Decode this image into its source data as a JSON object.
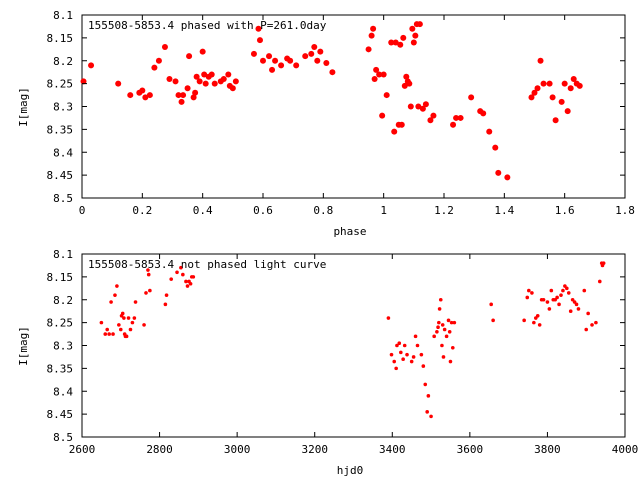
{
  "chart_data": [
    {
      "type": "scatter",
      "title": "155508-5853.4 phased with P=261.0day",
      "xlabel": "phase",
      "ylabel": "I[mag]",
      "xlim": [
        0,
        1.8
      ],
      "ylim": [
        8.5,
        8.1
      ],
      "y_inverted": true,
      "grid": false,
      "marker_color": "#ff0000",
      "marker": "filled-circle-large",
      "xticks": [
        0,
        0.2,
        0.4,
        0.6,
        0.8,
        1,
        1.2,
        1.4,
        1.6,
        1.8
      ],
      "xtick_labels": [
        "0",
        "0.2",
        "0.4",
        "0.6",
        "0.8",
        "1",
        "1.2",
        "1.4",
        "1.6",
        "1.8"
      ],
      "yticks": [
        8.1,
        8.15,
        8.2,
        8.25,
        8.3,
        8.35,
        8.4,
        8.45,
        8.5
      ],
      "ytick_labels": [
        "8.1",
        "8.15",
        "8.2",
        "8.25",
        "8.3",
        "8.35",
        "8.4",
        "8.45",
        "8.5"
      ],
      "x": [
        0.005,
        0.03,
        0.12,
        0.16,
        0.19,
        0.2,
        0.21,
        0.225,
        0.24,
        0.255,
        0.275,
        0.29,
        0.31,
        0.32,
        0.33,
        0.335,
        0.35,
        0.355,
        0.37,
        0.375,
        0.38,
        0.39,
        0.4,
        0.405,
        0.41,
        0.42,
        0.43,
        0.44,
        0.46,
        0.47,
        0.485,
        0.49,
        0.5,
        0.51,
        0.57,
        0.585,
        0.59,
        0.6,
        0.62,
        0.63,
        0.64,
        0.66,
        0.68,
        0.69,
        0.71,
        0.74,
        0.76,
        0.77,
        0.78,
        0.79,
        0.81,
        0.83,
        0.95,
        0.96,
        0.965,
        0.97,
        0.975,
        0.985,
        0.995,
        1.0,
        1.01,
        1.025,
        1.035,
        1.04,
        1.05,
        1.055,
        1.06,
        1.065,
        1.07,
        1.075,
        1.08,
        1.085,
        1.09,
        1.095,
        1.1,
        1.105,
        1.11,
        1.115,
        1.12,
        1.13,
        1.14,
        1.155,
        1.165,
        1.23,
        1.24,
        1.255,
        1.29,
        1.32,
        1.33,
        1.35,
        1.37,
        1.38,
        1.41,
        1.49,
        1.5,
        1.51,
        1.52,
        1.53,
        1.55,
        1.56,
        1.57,
        1.59,
        1.6,
        1.61,
        1.62,
        1.63,
        1.64,
        1.65
      ],
      "y": [
        8.245,
        8.21,
        8.25,
        8.275,
        8.27,
        8.265,
        8.28,
        8.275,
        8.215,
        8.2,
        8.17,
        8.24,
        8.245,
        8.275,
        8.29,
        8.275,
        8.26,
        8.19,
        8.28,
        8.27,
        8.235,
        8.245,
        8.18,
        8.23,
        8.25,
        8.235,
        8.23,
        8.25,
        8.245,
        8.24,
        8.23,
        8.255,
        8.26,
        8.245,
        8.185,
        8.13,
        8.155,
        8.2,
        8.19,
        8.22,
        8.2,
        8.21,
        8.195,
        8.2,
        8.21,
        8.19,
        8.185,
        8.17,
        8.2,
        8.18,
        8.205,
        8.225,
        8.175,
        8.145,
        8.13,
        8.24,
        8.22,
        8.23,
        8.32,
        8.23,
        8.275,
        8.16,
        8.355,
        8.16,
        8.34,
        8.165,
        8.34,
        8.15,
        8.255,
        8.235,
        8.245,
        8.25,
        8.3,
        8.13,
        8.16,
        8.145,
        8.12,
        8.3,
        8.12,
        8.305,
        8.295,
        8.33,
        8.32,
        8.34,
        8.325,
        8.325,
        8.28,
        8.31,
        8.315,
        8.355,
        8.39,
        8.445,
        8.455,
        8.28,
        8.27,
        8.26,
        8.2,
        8.25,
        8.25,
        8.28,
        8.33,
        8.29,
        8.25,
        8.31,
        8.26,
        8.24,
        8.25,
        8.255
      ]
    },
    {
      "type": "scatter",
      "title": "155508-5853.4 not phased light curve",
      "xlabel": "hjd0",
      "ylabel": "I[mag]",
      "xlim": [
        2600,
        4000
      ],
      "ylim": [
        8.5,
        8.1
      ],
      "y_inverted": true,
      "grid": false,
      "marker_color": "#ff0000",
      "marker": "filled-circle-small",
      "xticks": [
        2600,
        2800,
        3000,
        3200,
        3400,
        3600,
        3800,
        4000
      ],
      "xtick_labels": [
        "2600",
        "2800",
        "3000",
        "3200",
        "3400",
        "3600",
        "3800",
        "4000"
      ],
      "yticks": [
        8.1,
        8.15,
        8.2,
        8.25,
        8.3,
        8.35,
        8.4,
        8.45,
        8.5
      ],
      "ytick_labels": [
        "8.1",
        "8.15",
        "8.2",
        "8.25",
        "8.3",
        "8.35",
        "8.4",
        "8.45",
        "8.5"
      ],
      "x": [
        2650,
        2660,
        2665,
        2670,
        2675,
        2680,
        2685,
        2690,
        2695,
        2700,
        2702,
        2705,
        2708,
        2710,
        2712,
        2715,
        2720,
        2725,
        2730,
        2735,
        2738,
        2760,
        2765,
        2770,
        2772,
        2775,
        2815,
        2818,
        2830,
        2845,
        2855,
        2860,
        2868,
        2872,
        2876,
        2880,
        2883,
        2887,
        3390,
        3398,
        3405,
        3410,
        3412,
        3418,
        3422,
        3428,
        3432,
        3438,
        3450,
        3455,
        3460,
        3465,
        3475,
        3480,
        3485,
        3490,
        3493,
        3500,
        3508,
        3515,
        3518,
        3520,
        3522,
        3525,
        3528,
        3530,
        3532,
        3535,
        3540,
        3545,
        3548,
        3550,
        3553,
        3556,
        3560,
        3655,
        3660,
        3740,
        3748,
        3752,
        3760,
        3765,
        3770,
        3775,
        3780,
        3785,
        3790,
        3800,
        3805,
        3810,
        3815,
        3820,
        3825,
        3830,
        3835,
        3840,
        3845,
        3850,
        3855,
        3860,
        3865,
        3870,
        3875,
        3880,
        3895,
        3900,
        3905,
        3915,
        3925,
        3935,
        3940,
        3942,
        3945
      ],
      "y": [
        8.25,
        8.275,
        8.265,
        8.275,
        8.205,
        8.275,
        8.19,
        8.17,
        8.255,
        8.265,
        8.235,
        8.23,
        8.24,
        8.275,
        8.28,
        8.28,
        8.24,
        8.265,
        8.25,
        8.24,
        8.205,
        8.255,
        8.185,
        8.135,
        8.145,
        8.18,
        8.21,
        8.19,
        8.155,
        8.14,
        8.13,
        8.145,
        8.16,
        8.17,
        8.16,
        8.165,
        8.15,
        8.15,
        8.24,
        8.32,
        8.335,
        8.35,
        8.3,
        8.295,
        8.315,
        8.33,
        8.3,
        8.32,
        8.335,
        8.325,
        8.28,
        8.3,
        8.32,
        8.345,
        8.385,
        8.445,
        8.41,
        8.455,
        8.28,
        8.27,
        8.26,
        8.25,
        8.22,
        8.2,
        8.3,
        8.255,
        8.325,
        8.265,
        8.28,
        8.245,
        8.27,
        8.335,
        8.25,
        8.305,
        8.25,
        8.21,
        8.245,
        8.245,
        8.195,
        8.18,
        8.185,
        8.25,
        8.24,
        8.235,
        8.255,
        8.2,
        8.2,
        8.205,
        8.22,
        8.18,
        8.2,
        8.2,
        8.195,
        8.21,
        8.19,
        8.18,
        8.17,
        8.175,
        8.185,
        8.225,
        8.2,
        8.205,
        8.21,
        8.22,
        8.18,
        8.265,
        8.23,
        8.255,
        8.25,
        8.16,
        8.12,
        8.125,
        8.12
      ]
    }
  ]
}
